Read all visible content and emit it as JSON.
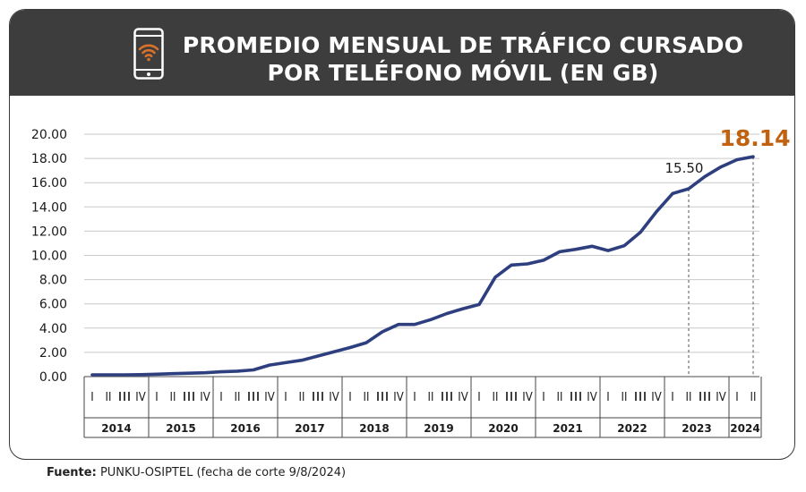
{
  "header": {
    "title_line1": "PROMEDIO MENSUAL DE TRÁFICO CURSADO",
    "title_line2": "POR TELÉFONO MÓVIL (EN GB)"
  },
  "footer": {
    "source_label": "Fuente:",
    "source_text": "PUNKU-OSIPTEL (fecha de corte 9/8/2024)"
  },
  "colors": {
    "line": "#2e3f7f",
    "highlight": "#c0620f",
    "header_bg": "#3d3d3d"
  },
  "chart_data": {
    "type": "line",
    "ylim": [
      0,
      20
    ],
    "y_ticks": [
      "0.00",
      "2.00",
      "4.00",
      "6.00",
      "8.00",
      "10.00",
      "12.00",
      "14.00",
      "16.00",
      "18.00",
      "20.00"
    ],
    "years": [
      {
        "label": "2014",
        "quarters": [
          "I",
          "II",
          "III",
          "IV"
        ]
      },
      {
        "label": "2015",
        "quarters": [
          "I",
          "II",
          "III",
          "IV"
        ]
      },
      {
        "label": "2016",
        "quarters": [
          "I",
          "II",
          "III",
          "IV"
        ]
      },
      {
        "label": "2017",
        "quarters": [
          "I",
          "II",
          "III",
          "IV"
        ]
      },
      {
        "label": "2018",
        "quarters": [
          "I",
          "II",
          "III",
          "IV"
        ]
      },
      {
        "label": "2019",
        "quarters": [
          "I",
          "II",
          "III",
          "IV"
        ]
      },
      {
        "label": "2020",
        "quarters": [
          "I",
          "II",
          "III",
          "IV"
        ]
      },
      {
        "label": "2021",
        "quarters": [
          "I",
          "II",
          "III",
          "IV"
        ]
      },
      {
        "label": "2022",
        "quarters": [
          "I",
          "II",
          "III",
          "IV"
        ]
      },
      {
        "label": "2023",
        "quarters": [
          "I",
          "II",
          "III",
          "IV"
        ]
      },
      {
        "label": "2024",
        "quarters": [
          "I",
          "II"
        ]
      }
    ],
    "values": [
      0.15,
      0.15,
      0.15,
      0.16,
      0.2,
      0.24,
      0.28,
      0.32,
      0.4,
      0.45,
      0.55,
      0.95,
      1.15,
      1.35,
      1.7,
      2.05,
      2.4,
      2.8,
      3.7,
      4.3,
      4.3,
      4.7,
      5.2,
      5.6,
      5.95,
      8.2,
      9.2,
      9.3,
      9.6,
      10.3,
      10.5,
      10.75,
      10.4,
      10.8,
      11.9,
      13.6,
      15.1,
      15.5,
      16.5,
      17.3,
      17.9,
      18.14
    ],
    "annotations": [
      {
        "index": 37,
        "label": "15.50",
        "emphasis": false
      },
      {
        "index": 41,
        "label": "18.14",
        "emphasis": true
      }
    ]
  }
}
